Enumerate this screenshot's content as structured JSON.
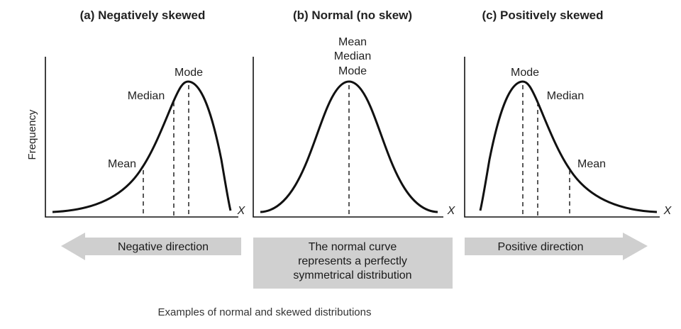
{
  "panels": {
    "a": {
      "title": "(a) Negatively skewed",
      "mean": "Mean",
      "median": "Median",
      "mode": "Mode",
      "x": "X"
    },
    "b": {
      "title": "(b) Normal (no skew)",
      "mean": "Mean",
      "median": "Median",
      "mode": "Mode",
      "x": "X"
    },
    "c": {
      "title": "(c) Positively skewed",
      "mean": "Mean",
      "median": "Median",
      "mode": "Mode",
      "x": "X"
    }
  },
  "y_label": "Frequency",
  "arrows": {
    "left": "Negative direction",
    "right": "Positive direction"
  },
  "center_box": {
    "line1": "The normal curve",
    "line2": "represents a perfectly",
    "line3": "symmetrical distribution"
  },
  "caption": "Examples of normal and skewed distributions",
  "colors": {
    "arrow_fill": "#cfcfcf",
    "box_fill": "#d0d0d0",
    "ink": "#111111"
  }
}
